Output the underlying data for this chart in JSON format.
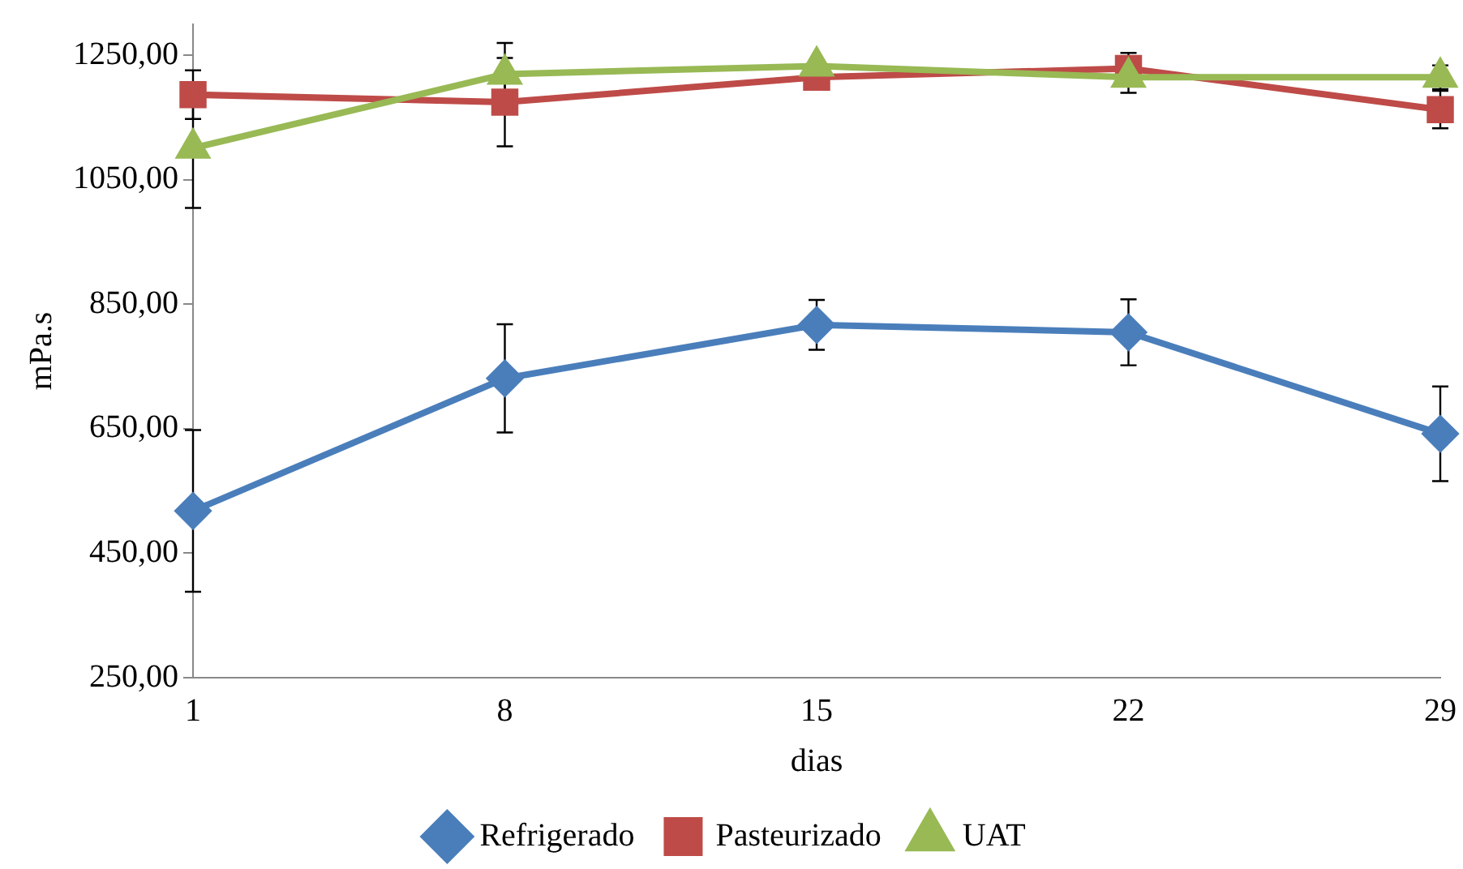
{
  "chart_data": {
    "type": "line",
    "xlabel": "dias",
    "ylabel": "mPa.s",
    "categories": [
      "1",
      "8",
      "15",
      "22",
      "29"
    ],
    "series": [
      {
        "name": "Refrigerado",
        "color": "#4a7ebb",
        "marker": "diamond",
        "values": [
          518,
          731,
          817,
          805,
          642
        ],
        "errors": [
          130,
          87,
          40,
          53,
          76
        ]
      },
      {
        "name": "Pasteurizado",
        "color": "#be4b48",
        "marker": "square",
        "values": [
          1187,
          1175,
          1215,
          1229,
          1163
        ],
        "errors": [
          39,
          71,
          null,
          25,
          30
        ]
      },
      {
        "name": "UAT",
        "color": "#98b954",
        "marker": "triangle",
        "values": [
          1101,
          1220,
          1233,
          1215,
          1215
        ],
        "errors": [
          96,
          50,
          null,
          25,
          19
        ]
      }
    ],
    "ylim": [
      250,
      1300
    ],
    "yticks": [
      {
        "value": 250,
        "label": "250,00"
      },
      {
        "value": 450,
        "label": "450,00"
      },
      {
        "value": 650,
        "label": "650,00"
      },
      {
        "value": 850,
        "label": "850,00"
      },
      {
        "value": 1050,
        "label": "1050,00"
      },
      {
        "value": 1250,
        "label": "1250,00"
      }
    ],
    "grid": false,
    "legend": "bottom",
    "line_style": "solid"
  }
}
